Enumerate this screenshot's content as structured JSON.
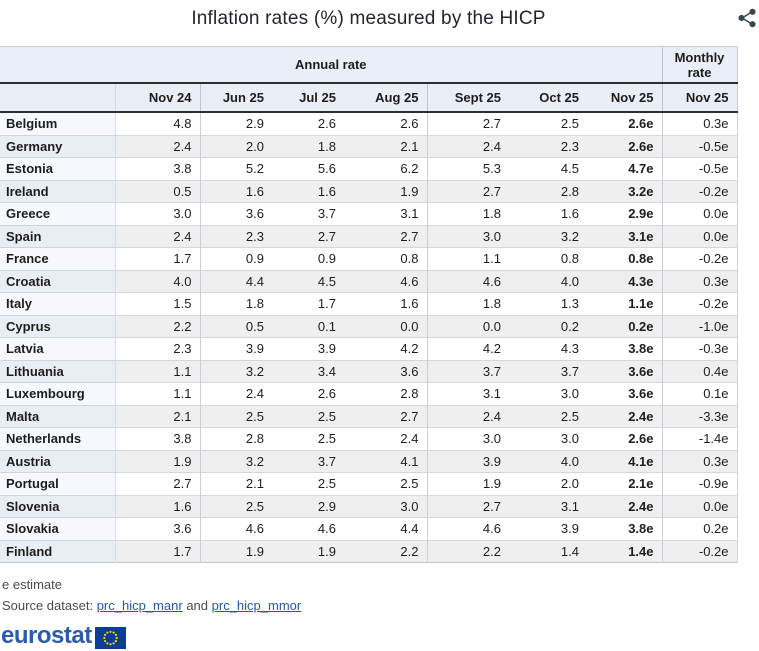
{
  "title": "Inflation rates (%) measured by the HICP",
  "chart_data": {
    "type": "table",
    "title": "Inflation rates (%) measured by the HICP",
    "group_headers": {
      "annual": "Annual rate",
      "monthly": "Monthly rate"
    },
    "annual_columns": [
      "Nov 24",
      "Jun 25",
      "Jul 25",
      "Aug 25",
      "Sept 25",
      "Oct 25",
      "Nov 25"
    ],
    "monthly_column": "Nov 25",
    "value_note": "values suffixed with e are estimates",
    "rows": [
      {
        "country": "Belgium",
        "annual": [
          "4.8",
          "2.9",
          "2.6",
          "2.6",
          "2.7",
          "2.5",
          "2.6e"
        ],
        "monthly": "0.3e"
      },
      {
        "country": "Germany",
        "annual": [
          "2.4",
          "2.0",
          "1.8",
          "2.1",
          "2.4",
          "2.3",
          "2.6e"
        ],
        "monthly": "-0.5e"
      },
      {
        "country": "Estonia",
        "annual": [
          "3.8",
          "5.2",
          "5.6",
          "6.2",
          "5.3",
          "4.5",
          "4.7e"
        ],
        "monthly": "-0.5e"
      },
      {
        "country": "Ireland",
        "annual": [
          "0.5",
          "1.6",
          "1.6",
          "1.9",
          "2.7",
          "2.8",
          "3.2e"
        ],
        "monthly": "-0.2e"
      },
      {
        "country": "Greece",
        "annual": [
          "3.0",
          "3.6",
          "3.7",
          "3.1",
          "1.8",
          "1.6",
          "2.9e"
        ],
        "monthly": "0.0e"
      },
      {
        "country": "Spain",
        "annual": [
          "2.4",
          "2.3",
          "2.7",
          "2.7",
          "3.0",
          "3.2",
          "3.1e"
        ],
        "monthly": "0.0e"
      },
      {
        "country": "France",
        "annual": [
          "1.7",
          "0.9",
          "0.9",
          "0.8",
          "1.1",
          "0.8",
          "0.8e"
        ],
        "monthly": "-0.2e"
      },
      {
        "country": "Croatia",
        "annual": [
          "4.0",
          "4.4",
          "4.5",
          "4.6",
          "4.6",
          "4.0",
          "4.3e"
        ],
        "monthly": "0.3e"
      },
      {
        "country": "Italy",
        "annual": [
          "1.5",
          "1.8",
          "1.7",
          "1.6",
          "1.8",
          "1.3",
          "1.1e"
        ],
        "monthly": "-0.2e"
      },
      {
        "country": "Cyprus",
        "annual": [
          "2.2",
          "0.5",
          "0.1",
          "0.0",
          "0.0",
          "0.2",
          "0.2e"
        ],
        "monthly": "-1.0e"
      },
      {
        "country": "Latvia",
        "annual": [
          "2.3",
          "3.9",
          "3.9",
          "4.2",
          "4.2",
          "4.3",
          "3.8e"
        ],
        "monthly": "-0.3e"
      },
      {
        "country": "Lithuania",
        "annual": [
          "1.1",
          "3.2",
          "3.4",
          "3.6",
          "3.7",
          "3.7",
          "3.6e"
        ],
        "monthly": "0.4e"
      },
      {
        "country": "Luxembourg",
        "annual": [
          "1.1",
          "2.4",
          "2.6",
          "2.8",
          "3.1",
          "3.0",
          "3.6e"
        ],
        "monthly": "0.1e"
      },
      {
        "country": "Malta",
        "annual": [
          "2.1",
          "2.5",
          "2.5",
          "2.7",
          "2.4",
          "2.5",
          "2.4e"
        ],
        "monthly": "-3.3e"
      },
      {
        "country": "Netherlands",
        "annual": [
          "3.8",
          "2.8",
          "2.5",
          "2.4",
          "3.0",
          "3.0",
          "2.6e"
        ],
        "monthly": "-1.4e"
      },
      {
        "country": "Austria",
        "annual": [
          "1.9",
          "3.2",
          "3.7",
          "4.1",
          "3.9",
          "4.0",
          "4.1e"
        ],
        "monthly": "0.3e"
      },
      {
        "country": "Portugal",
        "annual": [
          "2.7",
          "2.1",
          "2.5",
          "2.5",
          "1.9",
          "2.0",
          "2.1e"
        ],
        "monthly": "-0.9e"
      },
      {
        "country": "Slovenia",
        "annual": [
          "1.6",
          "2.5",
          "2.9",
          "3.0",
          "2.7",
          "3.1",
          "2.4e"
        ],
        "monthly": "0.0e"
      },
      {
        "country": "Slovakia",
        "annual": [
          "3.6",
          "4.6",
          "4.6",
          "4.4",
          "4.6",
          "3.9",
          "3.8e"
        ],
        "monthly": "0.2e"
      },
      {
        "country": "Finland",
        "annual": [
          "1.7",
          "1.9",
          "1.9",
          "2.2",
          "2.2",
          "1.4",
          "1.4e"
        ],
        "monthly": "-0.2e"
      }
    ]
  },
  "icons": {
    "share": "share-icon",
    "eu_flag": "eu-flag-icon"
  },
  "footer": {
    "note": "e estimate",
    "source_label": "Source dataset:",
    "link_manr": "prc_hicp_manr",
    "and_text": "and",
    "link_mmor": "prc_hicp_mmor",
    "logo_text": "eurostat"
  },
  "colors": {
    "header_bg": "#eaeff7",
    "stripe_data": "#efefef",
    "stripe_name": "#e9edf4",
    "name_col_bg": "#f5f8fc",
    "dark_rule": "#2e2e2e",
    "link_blue": "#2457ab",
    "logo_blue": "#2d5bab",
    "flag_blue": "#0b3d91",
    "star_yellow": "#ffcc00",
    "share_icon": "#37474f"
  }
}
